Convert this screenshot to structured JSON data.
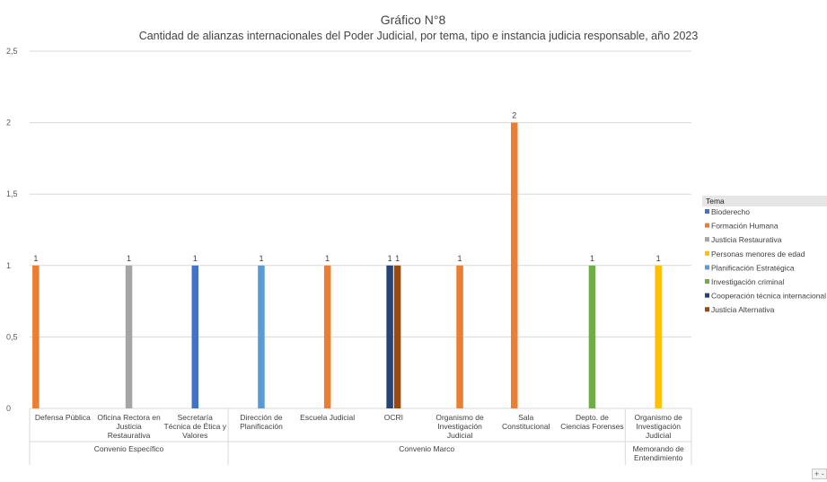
{
  "chart_data": {
    "type": "bar",
    "title": "Gráfico N°8",
    "subtitle": "Cantidad de alianzas internacionales del Poder Judicial, por tema, tipo e instancia judicia responsable, año 2023",
    "ylim": [
      0,
      2.5
    ],
    "yticks": [
      "0",
      "0,5",
      "1",
      "1,5",
      "2",
      "2,5"
    ],
    "ytick_values": [
      0,
      0.5,
      1,
      1.5,
      2,
      2.5
    ],
    "legend_title": "Tema",
    "legend_position": "right",
    "grid": true,
    "series": [
      {
        "name": "Bioderecho",
        "color": "#4472c4"
      },
      {
        "name": "Formación Humana",
        "color": "#ed7d31"
      },
      {
        "name": "Justicia Restaurativa",
        "color": "#a5a5a5"
      },
      {
        "name": "Personas menores de edad",
        "color": "#ffc000"
      },
      {
        "name": "Planificación Estratégica",
        "color": "#5b9bd5"
      },
      {
        "name": "Investigación criminal",
        "color": "#70ad47"
      },
      {
        "name": "Cooperación técnica internacional",
        "color": "#264478"
      },
      {
        "name": "Justicia Alternativa",
        "color": "#9e480e"
      }
    ],
    "groups": [
      {
        "label": "Convenio Específico",
        "categories": [
          {
            "label": [
              "Defensa Pública"
            ],
            "bars": [
              {
                "series": "Formación Humana",
                "value": 1,
                "label": "1"
              }
            ]
          },
          {
            "label": [
              "Oficina Rectora en",
              "Justicia",
              "Restaurativa"
            ],
            "bars": [
              {
                "series": "Justicia Restaurativa",
                "value": 1,
                "label": "1"
              }
            ]
          },
          {
            "label": [
              "Secretaría",
              "Técnica de Ética y",
              "Valores"
            ],
            "bars": [
              {
                "series": "Bioderecho",
                "value": 1,
                "label": "1"
              }
            ]
          }
        ]
      },
      {
        "label": "Convenio Marco",
        "categories": [
          {
            "label": [
              "Dirección de",
              "Planificación"
            ],
            "bars": [
              {
                "series": "Planificación Estratégica",
                "value": 1,
                "label": "1"
              }
            ]
          },
          {
            "label": [
              "Escuela Judicial"
            ],
            "bars": [
              {
                "series": "Formación Humana",
                "value": 1,
                "label": "1"
              }
            ]
          },
          {
            "label": [
              "OCRI"
            ],
            "bars": [
              {
                "series": "Cooperación técnica internacional",
                "value": 1,
                "label": "1"
              },
              {
                "series": "Justicia Alternativa",
                "value": 1,
                "label": "1"
              }
            ]
          },
          {
            "label": [
              "Organismo de",
              "Investigación",
              "Judicial"
            ],
            "bars": [
              {
                "series": "Formación Humana",
                "value": 1,
                "label": "1"
              }
            ]
          },
          {
            "label": [
              "Sala",
              "Constitucional"
            ],
            "bars": [
              {
                "series": "Formación Humana",
                "value": 2,
                "label": "2"
              }
            ]
          },
          {
            "label": [
              "Depto. de",
              "Ciencias Forenses"
            ],
            "bars": [
              {
                "series": "Investigación criminal",
                "value": 1,
                "label": "1"
              }
            ]
          }
        ]
      },
      {
        "label": [
          "Memorando de",
          "Entendimiento"
        ],
        "categories": [
          {
            "label": [
              "Organismo de",
              "Investigación",
              "Judicial"
            ],
            "bars": [
              {
                "series": "Personas menores de edad",
                "value": 1,
                "label": "1"
              }
            ]
          }
        ]
      }
    ]
  },
  "ui": {
    "corner_button": "+ -"
  }
}
